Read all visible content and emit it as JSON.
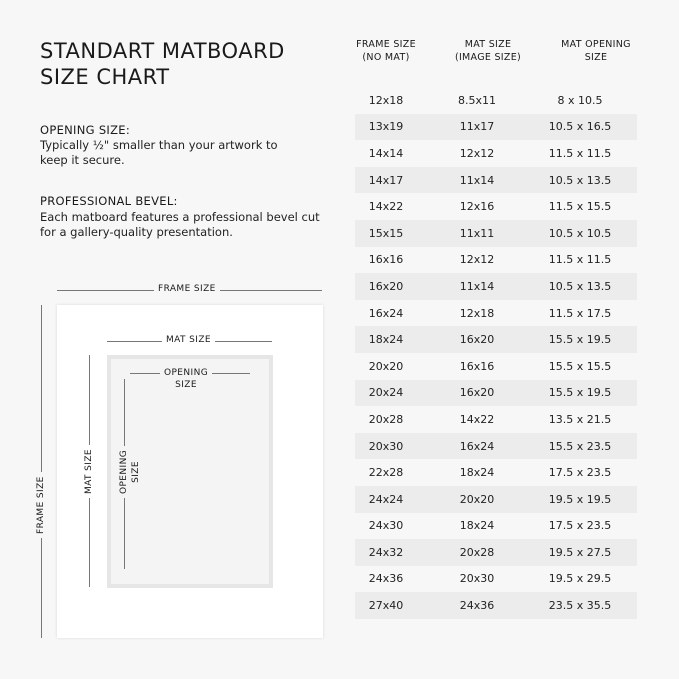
{
  "title": [
    "STANDART MATBOARD",
    "SIZE CHART"
  ],
  "opening": {
    "label": "OPENING SIZE:",
    "text": "Typically ½\" smaller than your artwork to keep it secure."
  },
  "bevel": {
    "label": "PROFESSIONAL BEVEL:",
    "text": "Each matboard features a professional bevel cut for a gallery-quality presentation."
  },
  "columns": [
    [
      "FRAME SIZE",
      "(NO MAT)"
    ],
    [
      "MAT SIZE",
      "(IMAGE SIZE)"
    ],
    [
      "MAT OPENING",
      "SIZE"
    ]
  ],
  "rows": [
    [
      "12x18",
      "8.5x11",
      "8 x 10.5"
    ],
    [
      "13x19",
      "11x17",
      "10.5 x 16.5"
    ],
    [
      "14x14",
      "12x12",
      "11.5 x 11.5"
    ],
    [
      "14x17",
      "11x14",
      "10.5 x 13.5"
    ],
    [
      "14x22",
      "12x16",
      "11.5 x 15.5"
    ],
    [
      "15x15",
      "11x11",
      "10.5 x 10.5"
    ],
    [
      "16x16",
      "12x12",
      "11.5 x 11.5"
    ],
    [
      "16x20",
      "11x14",
      "10.5 x 13.5"
    ],
    [
      "16x24",
      "12x18",
      "11.5 x 17.5"
    ],
    [
      "18x24",
      "16x20",
      "15.5 x 19.5"
    ],
    [
      "20x20",
      "16x16",
      "15.5 x 15.5"
    ],
    [
      "20x24",
      "16x20",
      "15.5 x 19.5"
    ],
    [
      "20x28",
      "14x22",
      "13.5 x 21.5"
    ],
    [
      "20x30",
      "16x24",
      "15.5 x 23.5"
    ],
    [
      "22x28",
      "18x24",
      "17.5 x 23.5"
    ],
    [
      "24x24",
      "20x20",
      "19.5 x 19.5"
    ],
    [
      "24x30",
      "18x24",
      "17.5 x 23.5"
    ],
    [
      "24x32",
      "20x28",
      "19.5 x 27.5"
    ],
    [
      "24x36",
      "20x30",
      "19.5 x 29.5"
    ],
    [
      "27x40",
      "24x36",
      "23.5 x 35.5"
    ]
  ],
  "diagram": {
    "frame": "FRAME SIZE",
    "mat": "MAT SIZE",
    "opening": [
      "OPENING",
      "SIZE"
    ]
  }
}
